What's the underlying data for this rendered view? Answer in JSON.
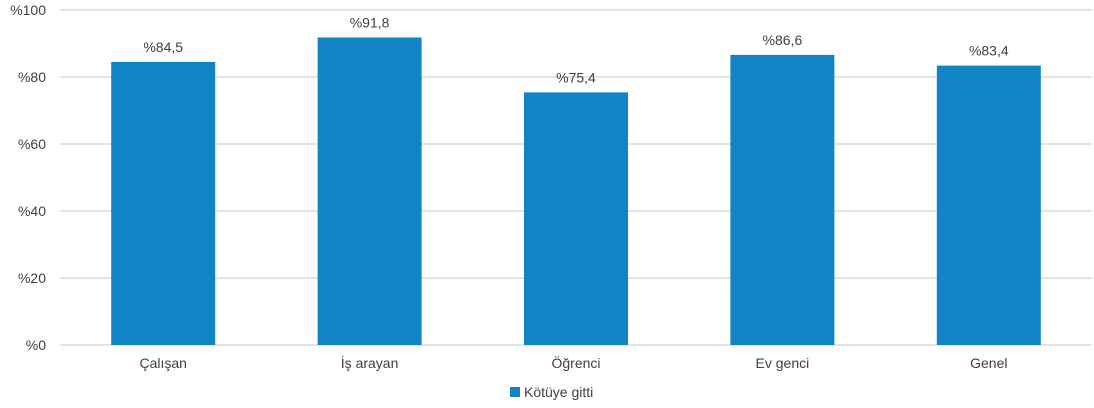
{
  "chart_data": {
    "type": "bar",
    "categories": [
      "Çalışan",
      "İş arayan",
      "Öğrenci",
      "Ev genci",
      "Genel"
    ],
    "series": [
      {
        "name": "Kötüye gitti",
        "values": [
          84.5,
          91.8,
          75.4,
          86.6,
          83.4
        ],
        "color": "#1283c4"
      }
    ],
    "data_labels": [
      "%84,5",
      "%91,8",
      "%75,4",
      "%86,6",
      "%83,4"
    ],
    "y_ticks": [
      0,
      20,
      40,
      60,
      80,
      100
    ],
    "y_tick_labels": [
      "%0",
      "%20",
      "%40",
      "%60",
      "%80",
      "%100"
    ],
    "ylim": [
      0,
      100
    ],
    "grid": true,
    "gridline_color": "#c8c8c8",
    "legend_position": "bottom"
  }
}
